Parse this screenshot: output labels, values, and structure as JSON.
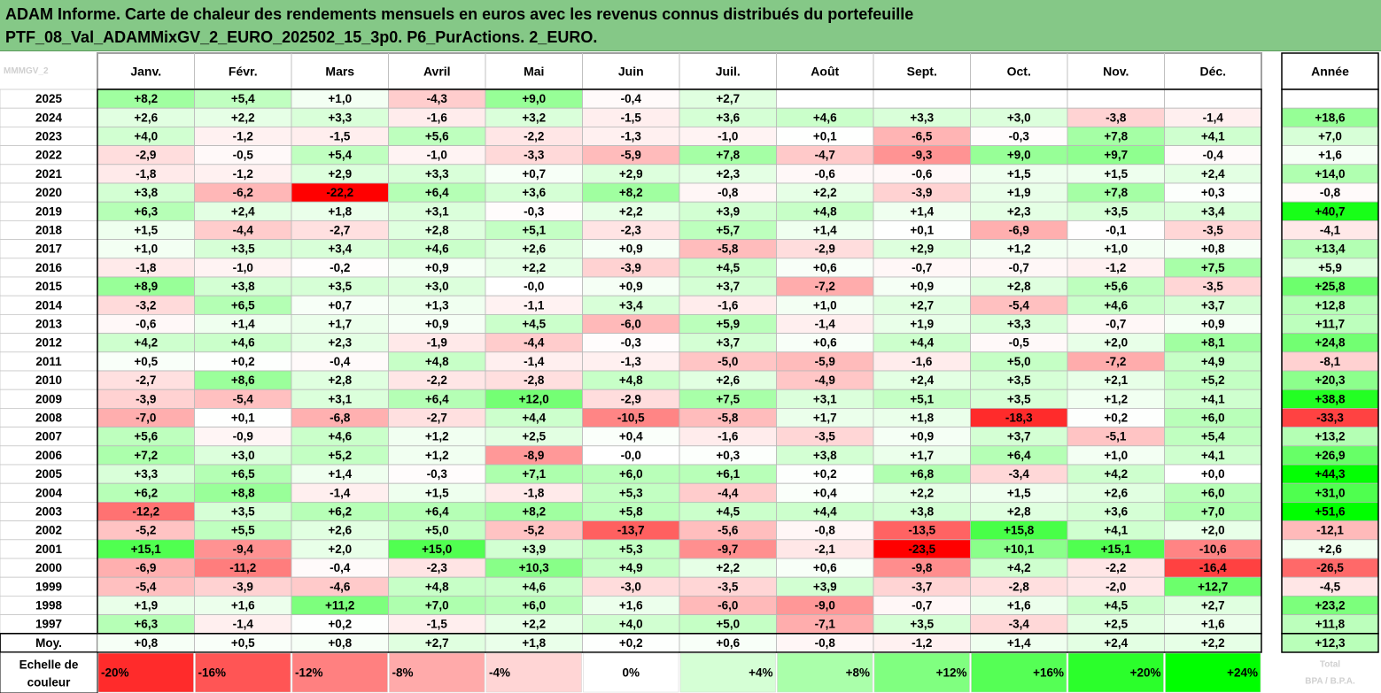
{
  "title_line1": "ADAM Informe. Carte de chaleur des rendements mensuels en euros avec les revenus connus distribués du portefeuille",
  "title_line2": "PTF_08_Val_ADAMMixGV_2_EURO_202502_15_3p0. P6_PurActions. 2_EURO.",
  "corner_watermark": "MMMGV_2",
  "year_column_header": "Année",
  "legend_label": "Echelle de couleur",
  "legend_watermark": "Total\nBPA / B.P.A.",
  "colors": {
    "negative": "#ff0000",
    "neutral": "#ffffff",
    "positive": "#00ff00",
    "banner": "#85c887",
    "grid": "#b0b0b0"
  },
  "chart_data": {
    "type": "heatmap",
    "title": "ADAM Informe. Carte de chaleur des rendements mensuels en euros avec les revenus connus distribués du portefeuille PTF_08_Val_ADAMMixGV_2_EURO_202502_15_3p0. P6_PurActions. 2_EURO.",
    "columns": [
      "Janv.",
      "Févr.",
      "Mars",
      "Avril",
      "Mai",
      "Juin",
      "Juil.",
      "Août",
      "Sept.",
      "Oct.",
      "Nov.",
      "Déc."
    ],
    "total_column": "Année",
    "unit": "%",
    "rows": [
      {
        "label": "2025",
        "months": [
          "+8,2",
          "+5,4",
          "+1,0",
          "-4,3",
          "+9,0",
          "-0,4",
          "+2,7",
          "",
          "",
          "",
          "",
          ""
        ],
        "year": ""
      },
      {
        "label": "2024",
        "months": [
          "+2,6",
          "+2,2",
          "+3,3",
          "-1,6",
          "+3,2",
          "-1,5",
          "+3,6",
          "+4,6",
          "+3,3",
          "+3,0",
          "-3,8",
          "-1,4"
        ],
        "year": "+18,6"
      },
      {
        "label": "2023",
        "months": [
          "+4,0",
          "-1,2",
          "-1,5",
          "+5,6",
          "-2,2",
          "-1,3",
          "-1,0",
          "+0,1",
          "-6,5",
          "-0,3",
          "+7,8",
          "+4,1"
        ],
        "year": "+7,0"
      },
      {
        "label": "2022",
        "months": [
          "-2,9",
          "-0,5",
          "+5,4",
          "-1,0",
          "-3,3",
          "-5,9",
          "+7,8",
          "-4,7",
          "-9,3",
          "+9,0",
          "+9,7",
          "-0,4"
        ],
        "year": "+1,6"
      },
      {
        "label": "2021",
        "months": [
          "-1,8",
          "-1,2",
          "+2,9",
          "+3,3",
          "+0,7",
          "+2,9",
          "+2,3",
          "-0,6",
          "-0,6",
          "+1,5",
          "+1,5",
          "+2,4"
        ],
        "year": "+14,0"
      },
      {
        "label": "2020",
        "months": [
          "+3,8",
          "-6,2",
          "-22,2",
          "+6,4",
          "+3,6",
          "+8,2",
          "-0,8",
          "+2,2",
          "-3,9",
          "+1,9",
          "+7,8",
          "+0,3"
        ],
        "year": "-0,8"
      },
      {
        "label": "2019",
        "months": [
          "+6,3",
          "+2,4",
          "+1,8",
          "+3,1",
          "-0,3",
          "+2,2",
          "+3,9",
          "+4,8",
          "+1,4",
          "+2,3",
          "+3,5",
          "+3,4"
        ],
        "year": "+40,7"
      },
      {
        "label": "2018",
        "months": [
          "+1,5",
          "-4,4",
          "-2,7",
          "+2,8",
          "+5,1",
          "-2,3",
          "+5,7",
          "+1,4",
          "+0,1",
          "-6,9",
          "-0,1",
          "-3,5"
        ],
        "year": "-4,1"
      },
      {
        "label": "2017",
        "months": [
          "+1,0",
          "+3,5",
          "+3,4",
          "+4,6",
          "+2,6",
          "+0,9",
          "-5,8",
          "-2,9",
          "+2,9",
          "+1,2",
          "+1,0",
          "+0,8"
        ],
        "year": "+13,4"
      },
      {
        "label": "2016",
        "months": [
          "-1,8",
          "-1,0",
          "-0,2",
          "+0,9",
          "+2,2",
          "-3,9",
          "+4,5",
          "+0,6",
          "-0,7",
          "-0,7",
          "-1,2",
          "+7,5"
        ],
        "year": "+5,9"
      },
      {
        "label": "2015",
        "months": [
          "+8,9",
          "+3,8",
          "+3,5",
          "+3,0",
          "-0,0",
          "+0,9",
          "+3,7",
          "-7,2",
          "+0,9",
          "+2,8",
          "+5,6",
          "-3,5"
        ],
        "year": "+25,8"
      },
      {
        "label": "2014",
        "months": [
          "-3,2",
          "+6,5",
          "+0,7",
          "+1,3",
          "-1,1",
          "+3,4",
          "-1,6",
          "+1,0",
          "+2,7",
          "-5,4",
          "+4,6",
          "+3,7"
        ],
        "year": "+12,8"
      },
      {
        "label": "2013",
        "months": [
          "-0,6",
          "+1,4",
          "+1,7",
          "+0,9",
          "+4,5",
          "-6,0",
          "+5,9",
          "-1,4",
          "+1,9",
          "+3,3",
          "-0,7",
          "+0,9"
        ],
        "year": "+11,7"
      },
      {
        "label": "2012",
        "months": [
          "+4,2",
          "+4,6",
          "+2,3",
          "-1,9",
          "-4,4",
          "-0,3",
          "+3,7",
          "+0,6",
          "+4,4",
          "-0,5",
          "+2,0",
          "+8,1"
        ],
        "year": "+24,8"
      },
      {
        "label": "2011",
        "months": [
          "+0,5",
          "+0,2",
          "-0,4",
          "+4,8",
          "-1,4",
          "-1,3",
          "-5,0",
          "-5,9",
          "-1,6",
          "+5,0",
          "-7,2",
          "+4,9"
        ],
        "year": "-8,1"
      },
      {
        "label": "2010",
        "months": [
          "-2,7",
          "+8,6",
          "+2,8",
          "-2,2",
          "-2,8",
          "+4,8",
          "+2,6",
          "-4,9",
          "+2,4",
          "+3,5",
          "+2,1",
          "+5,2"
        ],
        "year": "+20,3"
      },
      {
        "label": "2009",
        "months": [
          "-3,9",
          "-5,4",
          "+3,1",
          "+6,4",
          "+12,0",
          "-2,9",
          "+7,5",
          "+3,1",
          "+5,1",
          "+3,5",
          "+1,2",
          "+4,1"
        ],
        "year": "+38,8"
      },
      {
        "label": "2008",
        "months": [
          "-7,0",
          "+0,1",
          "-6,8",
          "-2,7",
          "+4,4",
          "-10,5",
          "-5,8",
          "+1,7",
          "+1,8",
          "-18,3",
          "+0,2",
          "+6,0"
        ],
        "year": "-33,3"
      },
      {
        "label": "2007",
        "months": [
          "+5,6",
          "-0,9",
          "+4,6",
          "+1,2",
          "+2,5",
          "+0,4",
          "-1,6",
          "-3,5",
          "+0,9",
          "+3,7",
          "-5,1",
          "+5,4"
        ],
        "year": "+13,2"
      },
      {
        "label": "2006",
        "months": [
          "+7,2",
          "+3,0",
          "+5,2",
          "+1,2",
          "-8,9",
          "-0,0",
          "+0,3",
          "+3,8",
          "+1,7",
          "+6,4",
          "+1,0",
          "+4,1"
        ],
        "year": "+26,9"
      },
      {
        "label": "2005",
        "months": [
          "+3,3",
          "+6,5",
          "+1,4",
          "-0,3",
          "+7,1",
          "+6,0",
          "+6,1",
          "+0,2",
          "+6,8",
          "-3,4",
          "+4,2",
          "+0,0"
        ],
        "year": "+44,3"
      },
      {
        "label": "2004",
        "months": [
          "+6,2",
          "+8,8",
          "-1,4",
          "+1,5",
          "-1,8",
          "+5,3",
          "-4,4",
          "+0,4",
          "+2,2",
          "+1,5",
          "+2,6",
          "+6,0"
        ],
        "year": "+31,0"
      },
      {
        "label": "2003",
        "months": [
          "-12,2",
          "+3,5",
          "+6,2",
          "+6,4",
          "+8,2",
          "+5,8",
          "+4,5",
          "+4,4",
          "+3,8",
          "+2,8",
          "+3,6",
          "+7,0"
        ],
        "year": "+51,6"
      },
      {
        "label": "2002",
        "months": [
          "-5,2",
          "+5,5",
          "+2,6",
          "+5,0",
          "-5,2",
          "-13,7",
          "-5,6",
          "-0,8",
          "-13,5",
          "+15,8",
          "+4,1",
          "+2,0"
        ],
        "year": "-12,1"
      },
      {
        "label": "2001",
        "months": [
          "+15,1",
          "-9,4",
          "+2,0",
          "+15,0",
          "+3,9",
          "+5,3",
          "-9,7",
          "-2,1",
          "-23,5",
          "+10,1",
          "+15,1",
          "-10,6"
        ],
        "year": "+2,6"
      },
      {
        "label": "2000",
        "months": [
          "-6,9",
          "-11,2",
          "-0,4",
          "-2,3",
          "+10,3",
          "+4,9",
          "+2,2",
          "+0,6",
          "-9,8",
          "+4,2",
          "-2,2",
          "-16,4"
        ],
        "year": "-26,5"
      },
      {
        "label": "1999",
        "months": [
          "-5,4",
          "-3,9",
          "-4,6",
          "+4,8",
          "+4,6",
          "-3,0",
          "-3,5",
          "+3,9",
          "-3,7",
          "-2,8",
          "-2,0",
          "+12,7"
        ],
        "year": "-4,5"
      },
      {
        "label": "1998",
        "months": [
          "+1,9",
          "+1,6",
          "+11,2",
          "+7,0",
          "+6,0",
          "+1,6",
          "-6,0",
          "-9,0",
          "-0,7",
          "+1,6",
          "+4,5",
          "+2,7"
        ],
        "year": "+23,2"
      },
      {
        "label": "1997",
        "months": [
          "+6,3",
          "-1,4",
          "+0,2",
          "-1,5",
          "+2,2",
          "+4,0",
          "+5,0",
          "-7,1",
          "+3,5",
          "-3,4",
          "+2,5",
          "+1,6"
        ],
        "year": "+11,8"
      }
    ],
    "average_row": {
      "label": "Moy.",
      "months": [
        "+0,8",
        "+0,5",
        "+0,8",
        "+2,7",
        "+1,8",
        "+0,2",
        "+0,6",
        "-0,8",
        "-1,2",
        "+1,4",
        "+2,4",
        "+2,2"
      ],
      "year": "+12,3"
    },
    "scale": {
      "labels": [
        "-20%",
        "-16%",
        "-12%",
        "-8%",
        "-4%",
        "0%",
        "+4%",
        "+8%",
        "+12%",
        "+16%",
        "+20%",
        "+24%"
      ],
      "values": [
        -20,
        -16,
        -12,
        -8,
        -4,
        0,
        4,
        8,
        12,
        16,
        20,
        24
      ]
    },
    "color_saturation": {
      "month": 22,
      "year": 45
    }
  }
}
